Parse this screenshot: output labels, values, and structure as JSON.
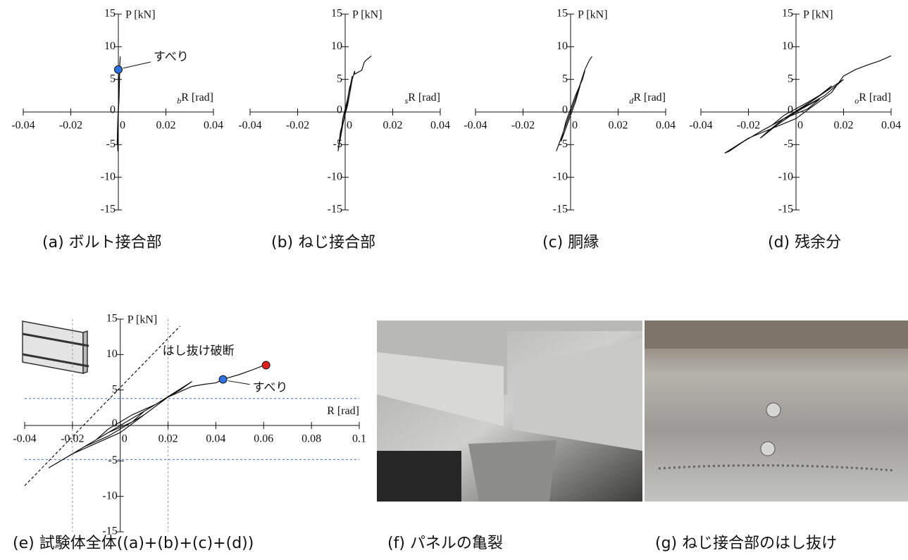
{
  "chart_data": [
    {
      "type": "line",
      "caption": "(a) ボルト接合部",
      "y_label": "P [kN]",
      "x_label_sub": "b",
      "x_label": "R [rad]",
      "xlim": [
        -0.04,
        0.04
      ],
      "ylim": [
        -15,
        15
      ],
      "xticks": [
        -0.04,
        -0.02,
        0,
        0.02,
        0.04
      ],
      "yticks": [
        -15,
        -10,
        -5,
        0,
        5,
        10,
        15
      ],
      "color": "#111111",
      "x": [
        0,
        0.0003,
        0.0005,
        0.0002,
        -0.0003,
        -0.0005,
        0,
        0.0004,
        0.0006,
        0.0002,
        -0.0004,
        -0.0002,
        0,
        0.0003,
        0.0005,
        0.0008
      ],
      "values": [
        0,
        2,
        5,
        3,
        -2,
        -5,
        0,
        4,
        6.2,
        3,
        -4,
        -6,
        0,
        5,
        6.5,
        8.5
      ],
      "points": [
        {
          "x": 0,
          "y": 6.5,
          "label": "すべり",
          "color": "#2f6fe0"
        }
      ]
    },
    {
      "type": "line",
      "caption": "(b) ねじ接合部",
      "y_label": "P [kN]",
      "x_label_sub": "s",
      "x_label": "R [rad]",
      "xlim": [
        -0.04,
        0.04
      ],
      "ylim": [
        -15,
        15
      ],
      "xticks": [
        -0.04,
        -0.02,
        0,
        0.02,
        0.04
      ],
      "yticks": [
        -15,
        -10,
        -5,
        0,
        5,
        10,
        15
      ],
      "color": "#111111",
      "x": [
        0,
        0.001,
        0.002,
        0.001,
        -0.001,
        -0.002,
        -0.001,
        0.001,
        0.003,
        0.002,
        -0.001,
        -0.003,
        -0.002,
        0.001,
        0.003,
        0.004,
        0.004,
        0.006,
        0.007,
        0.008,
        0.009,
        0.01,
        0.011
      ],
      "values": [
        0,
        2,
        4,
        2,
        -2,
        -4,
        -1,
        2,
        5.5,
        3,
        -2,
        -6,
        -3,
        1,
        5,
        6.3,
        5.8,
        6.2,
        6.4,
        7.6,
        8,
        8.3,
        8.6
      ]
    },
    {
      "type": "line",
      "caption": "(c) 胴縁",
      "y_label": "P [kN]",
      "x_label_sub": "d",
      "x_label": "R [rad]",
      "xlim": [
        -0.04,
        0.04
      ],
      "ylim": [
        -15,
        15
      ],
      "xticks": [
        -0.04,
        -0.02,
        0,
        0.02,
        0.04
      ],
      "yticks": [
        -15,
        -10,
        -5,
        0,
        5,
        10,
        15
      ],
      "color": "#111111",
      "x": [
        0,
        0.002,
        0.004,
        0.002,
        -0.002,
        -0.004,
        -0.002,
        0.002,
        0.005,
        0.006,
        0.003,
        -0.002,
        -0.005,
        -0.006,
        -0.003,
        0.002,
        0.006,
        0.008,
        0.009
      ],
      "values": [
        0,
        2,
        4,
        1.5,
        -2.5,
        -4.5,
        -1.5,
        2.5,
        5,
        6.3,
        3,
        -2,
        -5,
        -6,
        -3,
        2,
        6.5,
        8,
        8.5
      ]
    },
    {
      "type": "line",
      "caption": "(d) 残余分",
      "y_label": "P [kN]",
      "x_label_sub": "o",
      "x_label": "R [rad]",
      "xlim": [
        -0.04,
        0.04
      ],
      "ylim": [
        -15,
        15
      ],
      "xticks": [
        -0.04,
        -0.02,
        0,
        0.02,
        0.04
      ],
      "yticks": [
        -15,
        -10,
        -5,
        0,
        5,
        10,
        15
      ],
      "color": "#111111",
      "x": [
        0,
        0.005,
        0.01,
        0.005,
        -0.005,
        -0.01,
        -0.005,
        0.005,
        0.012,
        0.015,
        0.008,
        -0.005,
        -0.012,
        -0.015,
        -0.008,
        0.008,
        0.016,
        0.02,
        0.012,
        -0.005,
        -0.015,
        -0.022,
        -0.028,
        -0.03,
        -0.02,
        0,
        0.015,
        0.02,
        0.025,
        0.03,
        0.035,
        0.04
      ],
      "values": [
        0,
        1,
        2,
        0.5,
        -1,
        -2,
        -0.5,
        1.5,
        3,
        4,
        2,
        -1,
        -3,
        -4,
        -2,
        2,
        4,
        5,
        2.5,
        -1,
        -3,
        -4.5,
        -6,
        -6.3,
        -4,
        -1,
        3,
        5.5,
        6.5,
        7.2,
        7.8,
        8.6
      ]
    },
    {
      "type": "line",
      "caption": "(e) 試験体全体((a)+(b)+(c)+(d))",
      "y_label": "P [kN]",
      "x_label": "R [rad]",
      "xlim": [
        -0.04,
        0.1
      ],
      "ylim": [
        -15,
        15
      ],
      "xticks": [
        -0.04,
        -0.02,
        0,
        0.02,
        0.04,
        0.06,
        0.08,
        0.1
      ],
      "yticks": [
        -15,
        -10,
        -5,
        0,
        5,
        10,
        15
      ],
      "color": "#111111",
      "x": [
        0,
        0.005,
        0.01,
        0.005,
        -0.005,
        -0.01,
        -0.005,
        0.005,
        0.015,
        0.02,
        0.01,
        -0.005,
        -0.015,
        -0.02,
        -0.01,
        0.01,
        0.025,
        0.03,
        0.015,
        0,
        -0.015,
        -0.025,
        -0.03,
        -0.02,
        0,
        0.02,
        0.03,
        0.035,
        0.04,
        0.043,
        0.05,
        0.055,
        0.061
      ],
      "values": [
        0,
        1,
        2,
        0.5,
        -1,
        -2,
        -0.5,
        1.5,
        3,
        4,
        1.5,
        -1.5,
        -3,
        -4,
        -2,
        2,
        5,
        6.2,
        3,
        0,
        -3,
        -5,
        -6,
        -4,
        -1,
        4,
        5.5,
        5.8,
        6,
        6.5,
        7.2,
        7.8,
        8.6
      ],
      "hlines": [
        3.8,
        -4.8
      ],
      "vlines": [
        -0.02,
        0.02
      ],
      "diagonal": [
        [
          -0.04,
          -8.5
        ],
        [
          0.025,
          14
        ]
      ],
      "points": [
        {
          "x": 0.043,
          "y": 6.5,
          "label": "すべり",
          "color": "#2f6fe0"
        },
        {
          "x": 0.061,
          "y": 8.5,
          "label": "はし抜け破断",
          "color": "#e02020"
        }
      ]
    }
  ],
  "photos": [
    {
      "caption": "(f) パネルの亀裂"
    },
    {
      "caption": "(g) ねじ接合部のはし抜け"
    }
  ]
}
